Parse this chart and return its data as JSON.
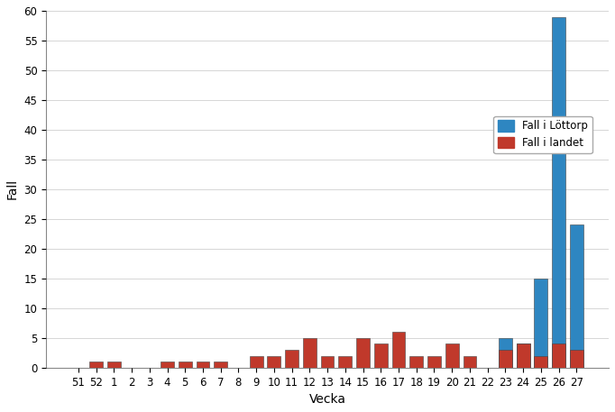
{
  "categories": [
    "51",
    "52",
    "1",
    "2",
    "3",
    "4",
    "5",
    "6",
    "7",
    "8",
    "9",
    "10",
    "11",
    "12",
    "13",
    "14",
    "15",
    "16",
    "17",
    "18",
    "19",
    "20",
    "21",
    "22",
    "23",
    "24",
    "25",
    "26",
    "27"
  ],
  "lottorp": [
    0,
    0,
    0,
    0,
    0,
    0,
    0,
    0,
    0,
    0,
    0,
    0,
    0,
    0,
    0,
    0,
    0,
    0,
    0,
    0,
    0,
    0,
    0,
    0,
    5,
    4,
    15,
    59,
    24
  ],
  "landet": [
    0,
    1,
    1,
    0,
    0,
    1,
    1,
    1,
    1,
    0,
    2,
    2,
    3,
    5,
    2,
    2,
    5,
    4,
    6,
    2,
    2,
    4,
    2,
    0,
    3,
    4,
    2,
    4,
    3
  ],
  "blue_color": "#2E86C1",
  "red_color": "#C0392B",
  "ylabel": "Fall",
  "xlabel": "Vecka",
  "ylim": [
    0,
    60
  ],
  "yticks": [
    0,
    5,
    10,
    15,
    20,
    25,
    30,
    35,
    40,
    45,
    50,
    55,
    60
  ],
  "legend_lottorp": "Fall i Löttorp",
  "legend_landet": "Fall i landet",
  "background_color": "#FFFFFF",
  "grid_color": "#D0D0D0"
}
